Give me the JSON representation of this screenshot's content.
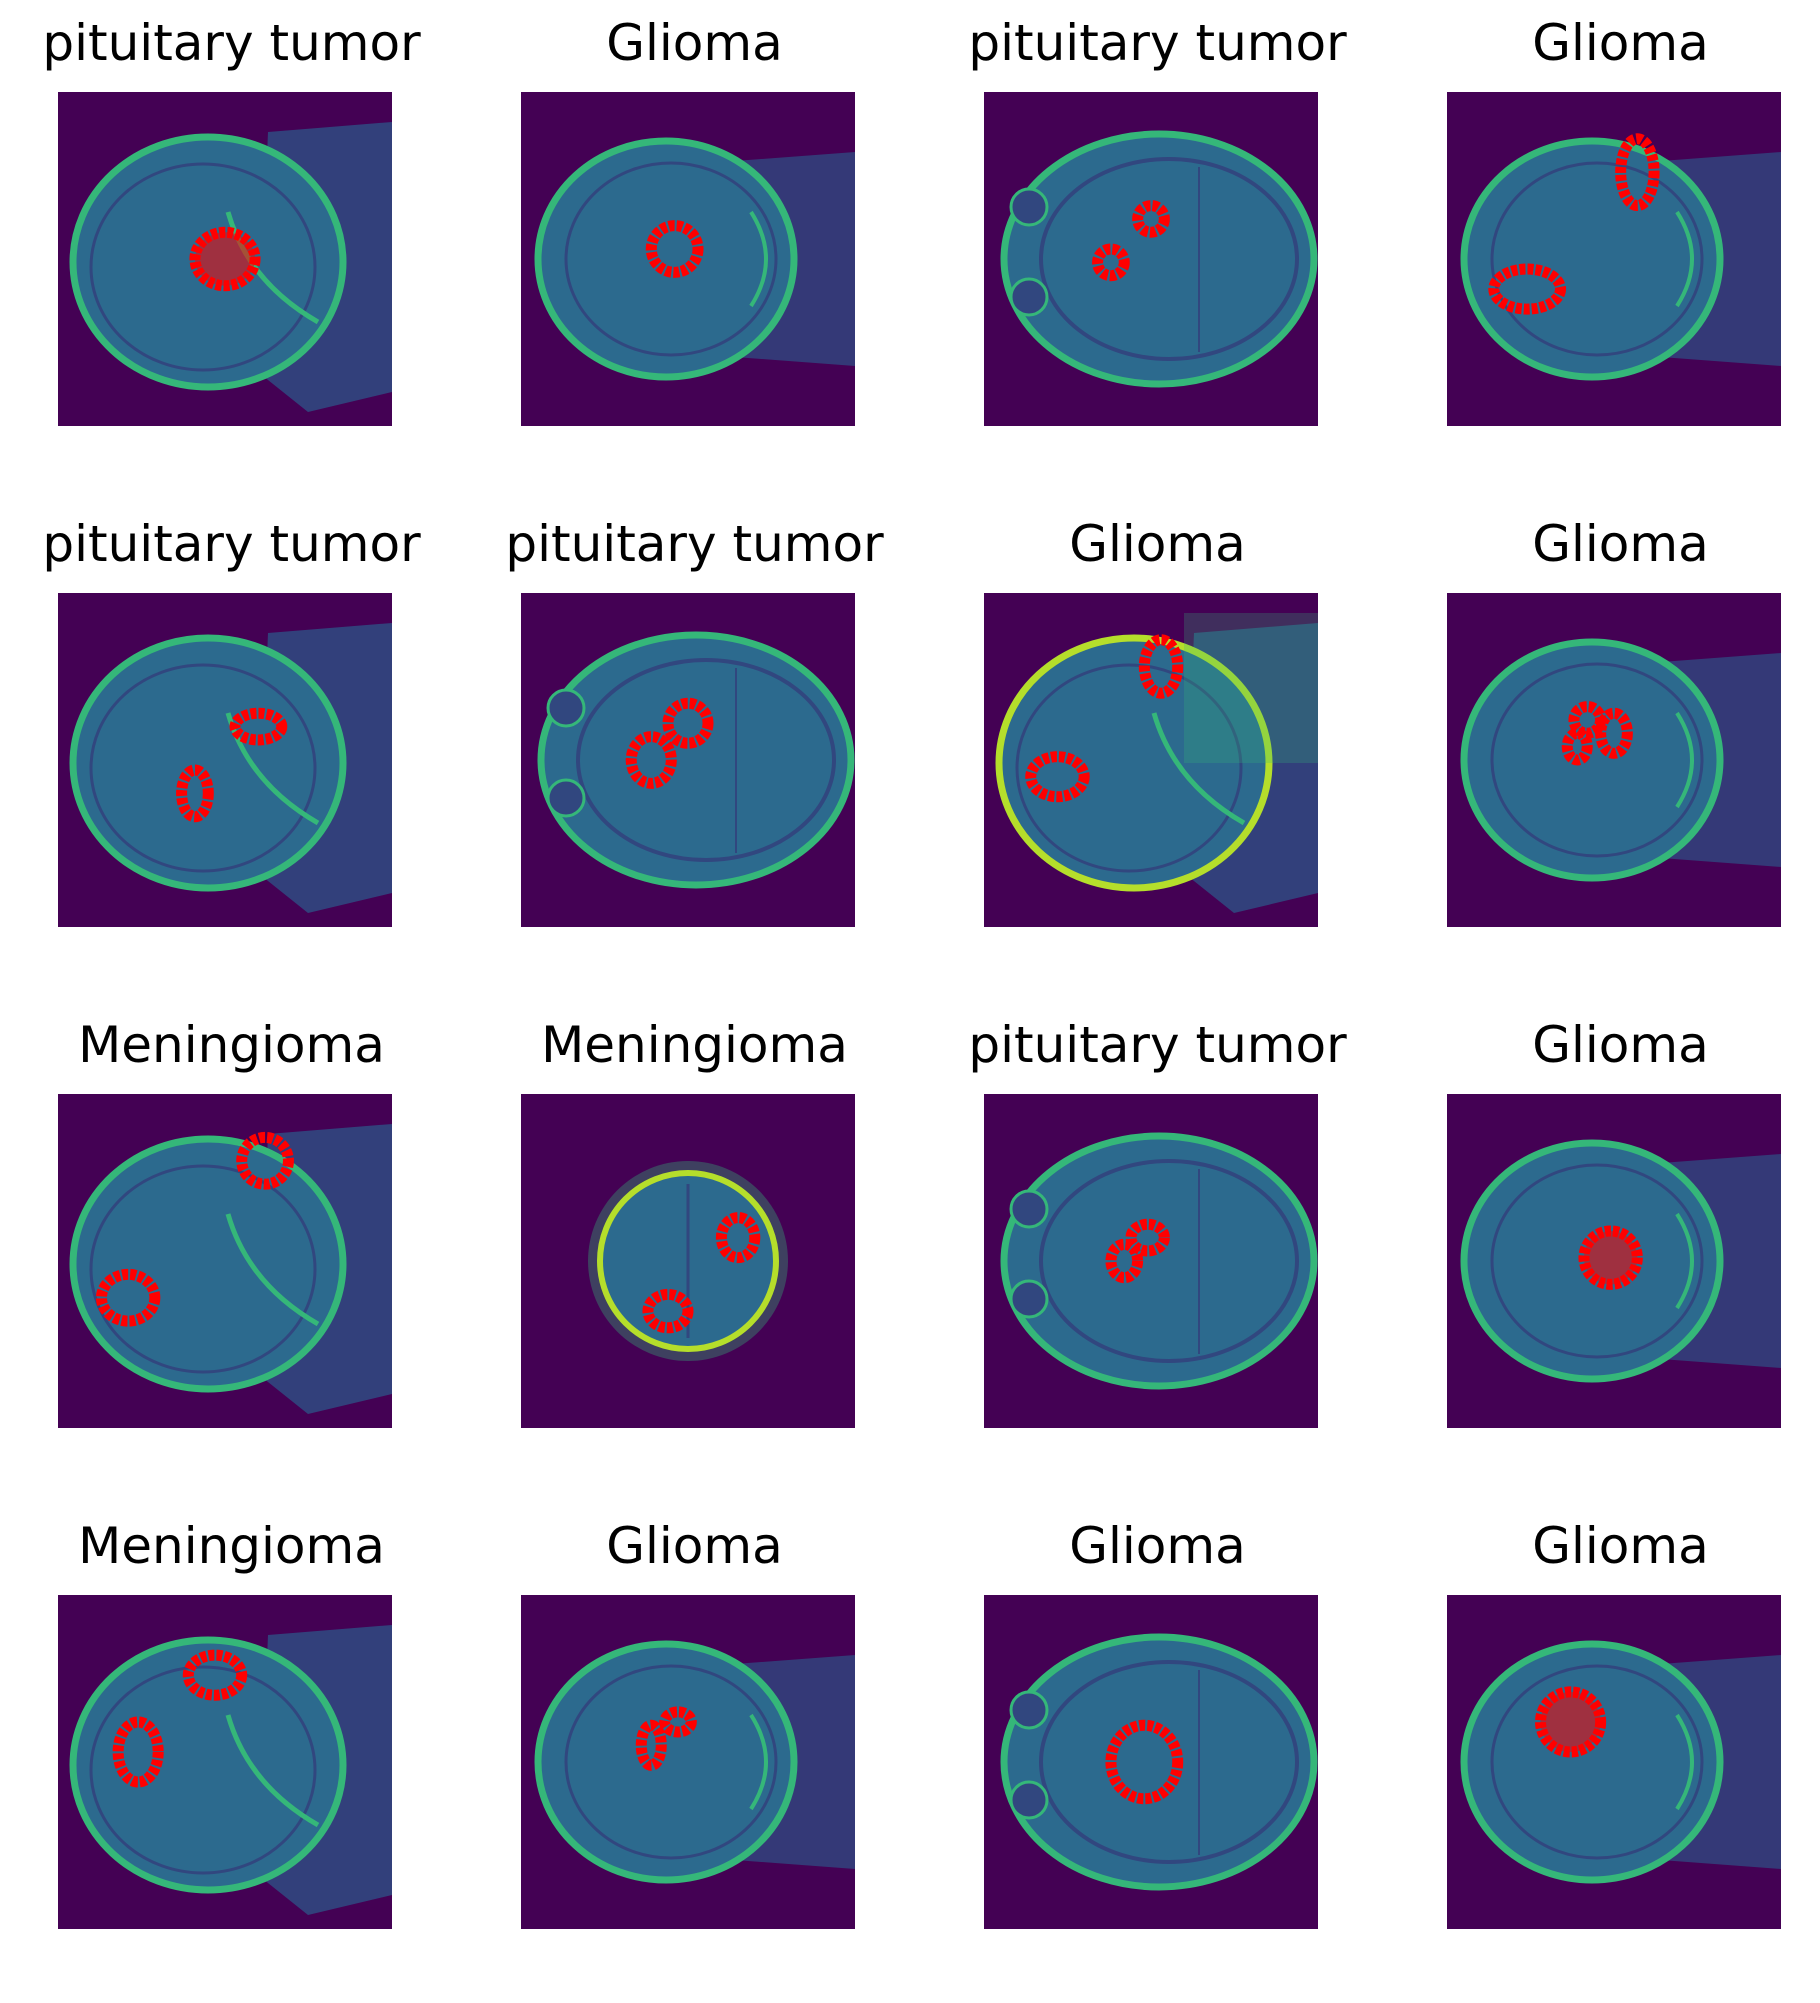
{
  "figure": {
    "panels": [
      {
        "title": "pituitary tumor",
        "view": "sagittal-left",
        "markers": [
          {
            "cx": 0.5,
            "cy": 0.5,
            "rx": 0.09,
            "ry": 0.08,
            "filled": true
          }
        ]
      },
      {
        "title": "Glioma",
        "view": "axial-right",
        "markers": [
          {
            "cx": 0.46,
            "cy": 0.47,
            "rx": 0.07,
            "ry": 0.07,
            "filled": false
          }
        ]
      },
      {
        "title": "pituitary tumor",
        "view": "axial-wide",
        "markers": [
          {
            "cx": 0.5,
            "cy": 0.38,
            "rx": 0.04,
            "ry": 0.04,
            "filled": false
          },
          {
            "cx": 0.38,
            "cy": 0.51,
            "rx": 0.04,
            "ry": 0.04,
            "filled": false
          }
        ]
      },
      {
        "title": "Glioma",
        "view": "axial-right",
        "markers": [
          {
            "cx": 0.57,
            "cy": 0.24,
            "rx": 0.05,
            "ry": 0.1,
            "filled": false
          },
          {
            "cx": 0.24,
            "cy": 0.59,
            "rx": 0.1,
            "ry": 0.06,
            "filled": false
          }
        ]
      },
      {
        "title": "pituitary tumor",
        "view": "sagittal-left",
        "markers": [
          {
            "cx": 0.6,
            "cy": 0.4,
            "rx": 0.07,
            "ry": 0.04,
            "filled": false
          },
          {
            "cx": 0.41,
            "cy": 0.6,
            "rx": 0.04,
            "ry": 0.07,
            "filled": false
          }
        ]
      },
      {
        "title": "pituitary tumor",
        "view": "axial-wide",
        "markers": [
          {
            "cx": 0.5,
            "cy": 0.39,
            "rx": 0.06,
            "ry": 0.06,
            "filled": false
          },
          {
            "cx": 0.39,
            "cy": 0.5,
            "rx": 0.06,
            "ry": 0.07,
            "filled": false
          }
        ]
      },
      {
        "title": "Glioma",
        "view": "sagittal-noisy",
        "markers": [
          {
            "cx": 0.53,
            "cy": 0.22,
            "rx": 0.05,
            "ry": 0.08,
            "filled": false
          },
          {
            "cx": 0.22,
            "cy": 0.55,
            "rx": 0.08,
            "ry": 0.06,
            "filled": false
          }
        ]
      },
      {
        "title": "Glioma",
        "view": "axial-right",
        "markers": [
          {
            "cx": 0.42,
            "cy": 0.38,
            "rx": 0.04,
            "ry": 0.04,
            "filled": false
          },
          {
            "cx": 0.39,
            "cy": 0.46,
            "rx": 0.03,
            "ry": 0.04,
            "filled": false
          },
          {
            "cx": 0.5,
            "cy": 0.42,
            "rx": 0.04,
            "ry": 0.06,
            "filled": false
          }
        ]
      },
      {
        "title": "Meningioma",
        "view": "sagittal-left",
        "markers": [
          {
            "cx": 0.62,
            "cy": 0.2,
            "rx": 0.07,
            "ry": 0.07,
            "filled": false
          },
          {
            "cx": 0.21,
            "cy": 0.61,
            "rx": 0.08,
            "ry": 0.07,
            "filled": false
          }
        ]
      },
      {
        "title": "Meningioma",
        "view": "axial-round",
        "markers": [
          {
            "cx": 0.65,
            "cy": 0.43,
            "rx": 0.05,
            "ry": 0.06,
            "filled": false
          },
          {
            "cx": 0.44,
            "cy": 0.65,
            "rx": 0.06,
            "ry": 0.05,
            "filled": false
          }
        ]
      },
      {
        "title": "pituitary tumor",
        "view": "axial-wide",
        "markers": [
          {
            "cx": 0.49,
            "cy": 0.43,
            "rx": 0.05,
            "ry": 0.04,
            "filled": false
          },
          {
            "cx": 0.42,
            "cy": 0.5,
            "rx": 0.04,
            "ry": 0.05,
            "filled": false
          }
        ]
      },
      {
        "title": "Glioma",
        "view": "axial-right",
        "markers": [
          {
            "cx": 0.49,
            "cy": 0.49,
            "rx": 0.08,
            "ry": 0.08,
            "filled": true
          }
        ]
      },
      {
        "title": "Meningioma",
        "view": "sagittal-left",
        "markers": [
          {
            "cx": 0.47,
            "cy": 0.24,
            "rx": 0.08,
            "ry": 0.06,
            "filled": false
          },
          {
            "cx": 0.24,
            "cy": 0.47,
            "rx": 0.06,
            "ry": 0.09,
            "filled": false
          }
        ]
      },
      {
        "title": "Glioma",
        "view": "axial-right",
        "markers": [
          {
            "cx": 0.47,
            "cy": 0.38,
            "rx": 0.04,
            "ry": 0.03,
            "filled": false
          },
          {
            "cx": 0.39,
            "cy": 0.45,
            "rx": 0.03,
            "ry": 0.06,
            "filled": false
          }
        ]
      },
      {
        "title": "Glioma",
        "view": "axial-wide",
        "markers": [
          {
            "cx": 0.48,
            "cy": 0.5,
            "rx": 0.1,
            "ry": 0.11,
            "filled": false
          }
        ]
      },
      {
        "title": "Glioma",
        "view": "axial-right",
        "markers": [
          {
            "cx": 0.37,
            "cy": 0.38,
            "rx": 0.09,
            "ry": 0.09,
            "filled": true
          }
        ]
      }
    ],
    "colors": {
      "background": "#440154",
      "tissue": "#2c6a8e",
      "tissue_dark": "#31477f",
      "skull": "#35b779",
      "skull_bright": "#b5de2b",
      "marker": "#ff0000"
    }
  }
}
